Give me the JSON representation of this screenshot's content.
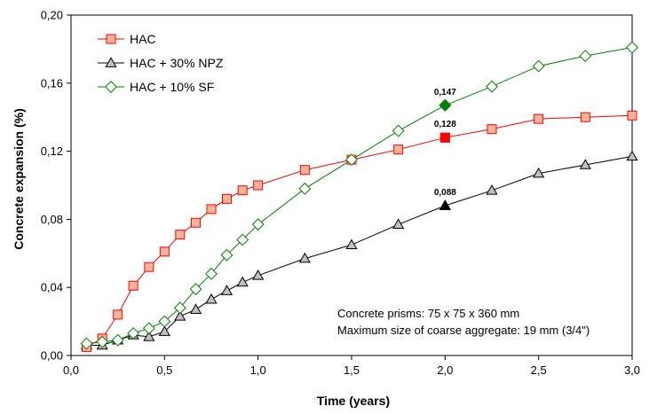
{
  "chart_data": {
    "type": "line",
    "xlabel": "Time (years)",
    "ylabel": "Concrete expansion (%)",
    "xlim": [
      0,
      3
    ],
    "ylim": [
      0,
      0.2
    ],
    "x_ticks": [
      "0,0",
      "0,5",
      "1,0",
      "1,5",
      "2,0",
      "2,5",
      "3,0"
    ],
    "y_ticks": [
      "0,00",
      "0,04",
      "0,08",
      "0,12",
      "0,16",
      "0,20"
    ],
    "grid": false,
    "legend_position": "top-left",
    "series": [
      {
        "name": "HAC",
        "color": "#ff0000",
        "marker": "square",
        "marker_fill": "#ffb399",
        "x": [
          0.083,
          0.167,
          0.25,
          0.333,
          0.417,
          0.5,
          0.583,
          0.667,
          0.75,
          0.833,
          0.917,
          1.0,
          1.25,
          1.5,
          1.75,
          2.0,
          2.25,
          2.5,
          2.75,
          3.0
        ],
        "y": [
          0.005,
          0.01,
          0.024,
          0.041,
          0.052,
          0.061,
          0.071,
          0.078,
          0.086,
          0.092,
          0.097,
          0.1,
          0.109,
          0.115,
          0.121,
          0.128,
          0.133,
          0.139,
          0.14,
          0.141
        ]
      },
      {
        "name": "HAC + 30% NPZ",
        "color": "#000000",
        "marker": "triangle",
        "marker_fill": "#c0c0c0",
        "x": [
          0.083,
          0.167,
          0.25,
          0.333,
          0.417,
          0.5,
          0.583,
          0.667,
          0.75,
          0.833,
          0.917,
          1.0,
          1.25,
          1.5,
          1.75,
          2.0,
          2.25,
          2.5,
          2.75,
          3.0
        ],
        "y": [
          0.006,
          0.006,
          0.009,
          0.012,
          0.011,
          0.014,
          0.023,
          0.027,
          0.033,
          0.038,
          0.043,
          0.047,
          0.057,
          0.065,
          0.077,
          0.088,
          0.097,
          0.107,
          0.112,
          0.117
        ]
      },
      {
        "name": "HAC + 10% SF",
        "color": "#008000",
        "marker": "diamond",
        "marker_fill": "#ffffff",
        "x": [
          0.083,
          0.167,
          0.25,
          0.333,
          0.417,
          0.5,
          0.583,
          0.667,
          0.75,
          0.833,
          0.917,
          1.0,
          1.25,
          1.5,
          1.75,
          2.0,
          2.25,
          2.5,
          2.75,
          3.0
        ],
        "y": [
          0.007,
          0.008,
          0.009,
          0.013,
          0.016,
          0.02,
          0.028,
          0.039,
          0.048,
          0.059,
          0.068,
          0.077,
          0.098,
          0.115,
          0.132,
          0.147,
          0.158,
          0.17,
          0.176,
          0.181
        ]
      }
    ],
    "highlighted_points": [
      {
        "series": 2,
        "x": 2.0,
        "y": 0.147,
        "label": "0,147",
        "fill": "#008000"
      },
      {
        "series": 0,
        "x": 2.0,
        "y": 0.128,
        "label": "0,128",
        "fill": "#ff0000"
      },
      {
        "series": 1,
        "x": 2.0,
        "y": 0.088,
        "label": "0,088",
        "fill": "#000000"
      }
    ],
    "annotations": [
      "Concrete prisms: 75 x 75 x 360 mm",
      "Maximum size of coarse aggregate: 19 mm (3/4\")"
    ]
  }
}
